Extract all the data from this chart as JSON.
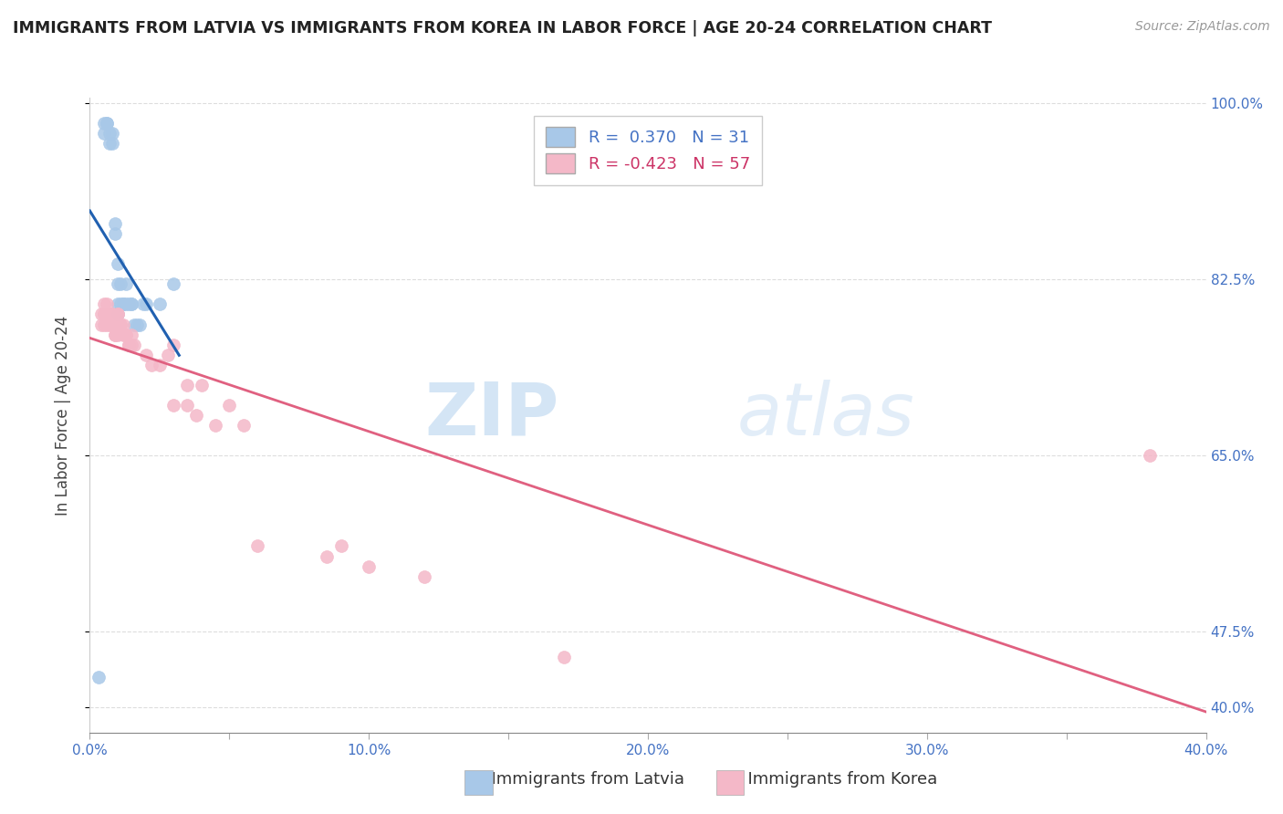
{
  "title": "IMMIGRANTS FROM LATVIA VS IMMIGRANTS FROM KOREA IN LABOR FORCE | AGE 20-24 CORRELATION CHART",
  "source": "Source: ZipAtlas.com",
  "ylabel": "In Labor Force | Age 20-24",
  "xlabel_latvia": "Immigrants from Latvia",
  "xlabel_korea": "Immigrants from Korea",
  "R_latvia": 0.37,
  "N_latvia": 31,
  "R_korea": -0.423,
  "N_korea": 57,
  "color_latvia": "#a8c8e8",
  "color_korea": "#f4b8c8",
  "color_trendline_latvia": "#2060b0",
  "color_trendline_korea": "#e06080",
  "xlim": [
    0.0,
    0.4
  ],
  "ylim": [
    0.375,
    1.005
  ],
  "yticks": [
    0.4,
    0.475,
    0.65,
    0.825,
    1.0
  ],
  "ytick_labels": [
    "40.0%",
    "47.5%",
    "65.0%",
    "82.5%",
    "100.0%"
  ],
  "xticks": [
    0.0,
    0.05,
    0.1,
    0.15,
    0.2,
    0.25,
    0.3,
    0.35,
    0.4
  ],
  "xtick_labels": [
    "0.0%",
    "",
    "10.0%",
    "",
    "20.0%",
    "",
    "30.0%",
    "",
    "40.0%"
  ],
  "latvia_x": [
    0.003,
    0.005,
    0.005,
    0.006,
    0.006,
    0.007,
    0.007,
    0.008,
    0.008,
    0.009,
    0.009,
    0.01,
    0.01,
    0.01,
    0.01,
    0.011,
    0.011,
    0.012,
    0.012,
    0.013,
    0.013,
    0.014,
    0.015,
    0.015,
    0.016,
    0.017,
    0.018,
    0.019,
    0.02,
    0.025,
    0.03
  ],
  "latvia_y": [
    0.43,
    0.98,
    0.97,
    0.98,
    0.98,
    0.97,
    0.96,
    0.97,
    0.96,
    0.87,
    0.88,
    0.84,
    0.82,
    0.8,
    0.79,
    0.8,
    0.82,
    0.8,
    0.8,
    0.8,
    0.82,
    0.8,
    0.8,
    0.8,
    0.78,
    0.78,
    0.78,
    0.8,
    0.8,
    0.8,
    0.82
  ],
  "korea_x": [
    0.004,
    0.004,
    0.005,
    0.005,
    0.005,
    0.005,
    0.006,
    0.006,
    0.006,
    0.006,
    0.007,
    0.007,
    0.007,
    0.008,
    0.008,
    0.008,
    0.008,
    0.008,
    0.009,
    0.009,
    0.009,
    0.01,
    0.01,
    0.01,
    0.01,
    0.01,
    0.011,
    0.011,
    0.012,
    0.012,
    0.013,
    0.013,
    0.014,
    0.014,
    0.015,
    0.015,
    0.016,
    0.02,
    0.022,
    0.025,
    0.028,
    0.03,
    0.03,
    0.035,
    0.035,
    0.038,
    0.04,
    0.045,
    0.05,
    0.055,
    0.06,
    0.085,
    0.09,
    0.1,
    0.12,
    0.17,
    0.38
  ],
  "korea_y": [
    0.78,
    0.79,
    0.78,
    0.79,
    0.79,
    0.8,
    0.78,
    0.79,
    0.79,
    0.8,
    0.78,
    0.79,
    0.79,
    0.78,
    0.78,
    0.79,
    0.78,
    0.79,
    0.77,
    0.78,
    0.77,
    0.78,
    0.79,
    0.77,
    0.79,
    0.78,
    0.78,
    0.78,
    0.78,
    0.77,
    0.77,
    0.77,
    0.76,
    0.76,
    0.77,
    0.76,
    0.76,
    0.75,
    0.74,
    0.74,
    0.75,
    0.76,
    0.7,
    0.72,
    0.7,
    0.69,
    0.72,
    0.68,
    0.7,
    0.68,
    0.56,
    0.55,
    0.56,
    0.54,
    0.53,
    0.45,
    0.65
  ],
  "watermark_zip": "ZIP",
  "watermark_atlas": "atlas",
  "background_color": "#ffffff",
  "grid_color": "#dddddd",
  "trendline_latvia_x0": 0.0,
  "trendline_latvia_x1": 0.032,
  "trendline_korea_x0": 0.0,
  "trendline_korea_x1": 0.4
}
